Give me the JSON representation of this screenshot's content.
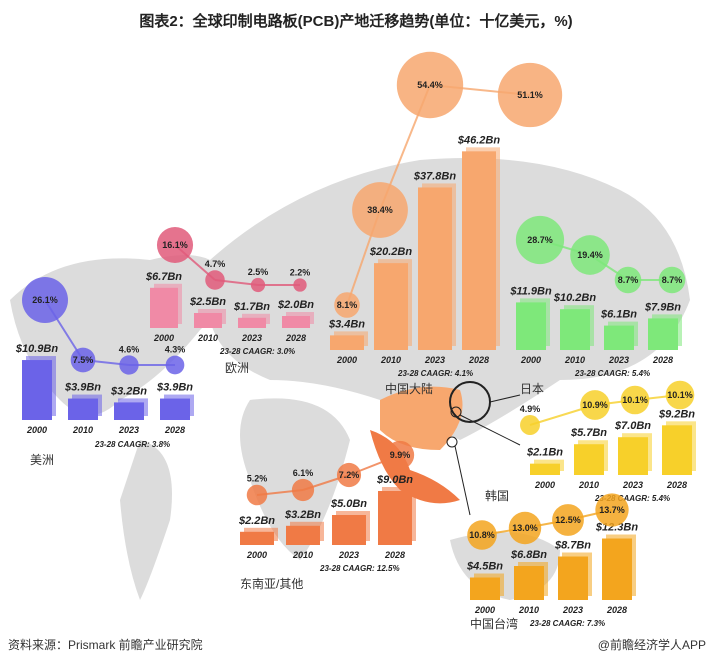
{
  "title": "图表2：全球印制电路板(PCB)产地迁移趋势(单位：十亿美元，%)",
  "source": "资料来源：Prismark 前瞻产业研究院",
  "credit": "@前瞻经济学人APP",
  "watermark": "前瞻产业研究院",
  "chart_data": {
    "type": "bar",
    "title": "全球印制电路板(PCB)产地迁移趋势(单位：十亿美元，%)",
    "categories": [
      "2000",
      "2010",
      "2023",
      "2028"
    ],
    "value_unit": "$Bn",
    "regions": [
      {
        "name": "美洲",
        "color": "#6b63e8",
        "values": [
          10.9,
          3.9,
          3.2,
          3.9
        ],
        "value_labels": [
          "$10.9Bn",
          "$3.9Bn",
          "$3.2Bn",
          "$3.9Bn"
        ],
        "shares": [
          "26.1%",
          "7.5%",
          "4.6%",
          "4.3%"
        ],
        "caagr": "23-28 CAAGR: 3.8%"
      },
      {
        "name": "欧洲",
        "color": "#f08aa6",
        "values": [
          6.7,
          2.5,
          1.7,
          2.0
        ],
        "value_labels": [
          "$6.7Bn",
          "$2.5Bn",
          "$1.7Bn",
          "$2.0Bn"
        ],
        "shares": [
          "16.1%",
          "4.7%",
          "2.5%",
          "2.2%"
        ],
        "caagr": "23-28 CAAGR: 3.0%"
      },
      {
        "name": "中国大陆",
        "color": "#f7a76e",
        "values": [
          3.4,
          20.2,
          37.8,
          46.2
        ],
        "value_labels": [
          "$3.4Bn",
          "$20.2Bn",
          "$37.8Bn",
          "$46.2Bn"
        ],
        "shares": [
          "8.1%",
          "38.4%",
          "54.4%",
          "51.1%"
        ],
        "caagr": "23-28 CAAGR: 4.1%"
      },
      {
        "name": "日本",
        "color": "#7ee87a",
        "values": [
          11.9,
          10.2,
          6.1,
          7.9
        ],
        "value_labels": [
          "$11.9Bn",
          "$10.2Bn",
          "$6.1Bn",
          "$7.9Bn"
        ],
        "shares": [
          "28.7%",
          "19.4%",
          "8.7%",
          "8.7%"
        ],
        "caagr": "23-28 CAAGR: 5.4%"
      },
      {
        "name": "韩国",
        "color": "#f7d02a",
        "values": [
          2.1,
          5.7,
          7.0,
          9.2
        ],
        "value_labels": [
          "$2.1Bn",
          "$5.7Bn",
          "$7.0Bn",
          "$9.2Bn"
        ],
        "shares": [
          "4.9%",
          "10.9%",
          "10.1%",
          "10.1%"
        ],
        "caagr": "23-28 CAAGR: 5.4%"
      },
      {
        "name": "东南亚/其他",
        "color": "#f07a45",
        "values": [
          2.2,
          3.2,
          5.0,
          9.0
        ],
        "value_labels": [
          "$2.2Bn",
          "$3.2Bn",
          "$5.0Bn",
          "$9.0Bn"
        ],
        "shares": [
          "5.2%",
          "6.1%",
          "7.2%",
          "9.9%"
        ],
        "caagr": "23-28 CAAGR: 12.5%"
      },
      {
        "name": "中国台湾",
        "color": "#f3a51e",
        "values": [
          4.5,
          6.8,
          8.7,
          12.3
        ],
        "value_labels": [
          "$4.5Bn",
          "$6.8Bn",
          "$8.7Bn",
          "$12.3Bn"
        ],
        "shares": [
          "10.8%",
          "13.0%",
          "12.5%",
          "13.7%"
        ],
        "caagr": "23-28 CAAGR: 7.3%"
      }
    ]
  }
}
